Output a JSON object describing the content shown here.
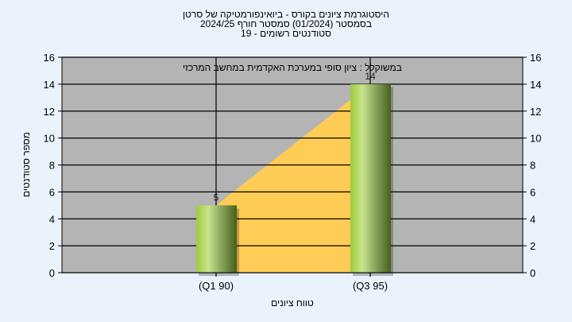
{
  "chart_data": {
    "type": "bar",
    "title_lines": [
      "היסטוגרמת ציונים בקורס - ביואינפורמטיקה של סרטן",
      "בסמסטר  (01/2024)  סמסטר חורף 2024/25",
      "סטודנטים רשומים - 19"
    ],
    "annotation": "במשוקלל : ציון סופי במערכת האקדמית במחשב המרכזי",
    "categories": [
      "(Q1 90)",
      "(Q3 95)"
    ],
    "values": [
      5,
      14
    ],
    "data_labels": [
      "5",
      "14"
    ],
    "xlabel": "טווח ציונים",
    "ylabel": "מספר סטודנטים",
    "ylim": [
      0,
      16
    ],
    "yticks": [
      0,
      2,
      4,
      6,
      8,
      10,
      12,
      14,
      16
    ],
    "grid": true,
    "overlay": "area",
    "colors": {
      "bar": "#9acd4a",
      "area": "#ffcc55",
      "plot_bg": "#b4b4b4",
      "page_bg": "#eaf3fc"
    }
  }
}
